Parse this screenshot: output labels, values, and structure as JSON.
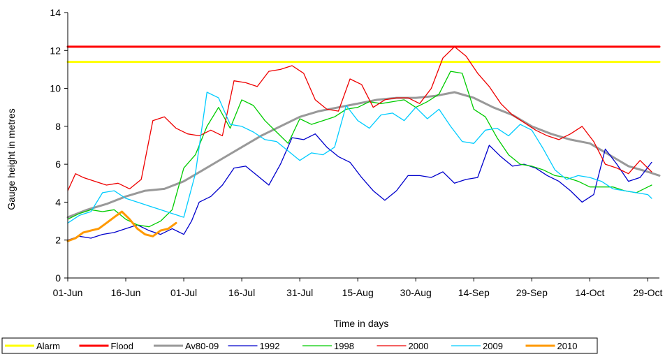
{
  "chart_data": {
    "type": "line",
    "title": "",
    "xlabel": "Time in days",
    "ylabel": "Gauge height in metres",
    "ylim": [
      0,
      14
    ],
    "yticks": [
      "0",
      "2",
      "4",
      "6",
      "8",
      "10",
      "12",
      "14"
    ],
    "xlim": [
      0,
      153
    ],
    "xticks": [
      {
        "label": "01-Jun",
        "x": 0
      },
      {
        "label": "16-Jun",
        "x": 15
      },
      {
        "label": "01-Jul",
        "x": 30
      },
      {
        "label": "16-Jul",
        "x": 45
      },
      {
        "label": "31-Jul",
        "x": 60
      },
      {
        "label": "15-Aug",
        "x": 75
      },
      {
        "label": "30-Aug",
        "x": 90
      },
      {
        "label": "14-Sep",
        "x": 105
      },
      {
        "label": "29-Sep",
        "x": 120
      },
      {
        "label": "14-Oct",
        "x": 135
      },
      {
        "label": "29-Oct",
        "x": 150
      }
    ],
    "grid": false,
    "legend_position": "bottom",
    "series": [
      {
        "name": "Alarm",
        "color": "#ffff00",
        "width": 3,
        "x": [
          0,
          153
        ],
        "y": [
          11.4,
          11.4
        ]
      },
      {
        "name": "Flood",
        "color": "#ff0000",
        "width": 3,
        "x": [
          0,
          153
        ],
        "y": [
          12.2,
          12.2
        ]
      },
      {
        "name": "Av80-09",
        "color": "#999999",
        "width": 3,
        "x": [
          0,
          5,
          10,
          15,
          20,
          25,
          30,
          35,
          40,
          45,
          50,
          55,
          60,
          65,
          70,
          75,
          80,
          85,
          90,
          95,
          100,
          105,
          110,
          115,
          120,
          125,
          130,
          135,
          140,
          145,
          150,
          153
        ],
        "y": [
          3.2,
          3.6,
          3.9,
          4.3,
          4.6,
          4.7,
          5.1,
          5.7,
          6.3,
          6.9,
          7.5,
          8.0,
          8.5,
          8.8,
          9.0,
          9.2,
          9.4,
          9.5,
          9.5,
          9.6,
          9.8,
          9.5,
          9.0,
          8.6,
          8.0,
          7.6,
          7.3,
          7.1,
          6.5,
          5.9,
          5.6,
          5.4
        ]
      },
      {
        "name": "1992",
        "color": "#0000cc",
        "width": 1.3,
        "x": [
          0,
          3,
          6,
          9,
          12,
          15,
          18,
          21,
          24,
          27,
          30,
          32,
          34,
          37,
          40,
          43,
          46,
          49,
          52,
          55,
          58,
          61,
          64,
          67,
          70,
          73,
          76,
          79,
          82,
          85,
          88,
          91,
          94,
          97,
          100,
          103,
          106,
          109,
          112,
          115,
          118,
          121,
          124,
          127,
          130,
          133,
          136,
          139,
          142,
          145,
          148,
          151
        ],
        "y": [
          2.0,
          2.2,
          2.1,
          2.3,
          2.4,
          2.6,
          2.8,
          2.5,
          2.3,
          2.6,
          2.3,
          3.0,
          4.0,
          4.3,
          4.9,
          5.8,
          5.9,
          5.4,
          4.9,
          6.0,
          7.4,
          7.3,
          7.6,
          6.9,
          6.4,
          6.1,
          5.3,
          4.6,
          4.1,
          4.6,
          5.4,
          5.4,
          5.3,
          5.6,
          5.0,
          5.2,
          5.3,
          7.0,
          6.4,
          5.9,
          6.0,
          5.8,
          5.4,
          5.1,
          4.6,
          4.0,
          4.4,
          6.8,
          6.0,
          5.1,
          5.3,
          6.1
        ]
      },
      {
        "name": "1998",
        "color": "#00cc00",
        "width": 1.3,
        "x": [
          0,
          3,
          6,
          9,
          12,
          15,
          18,
          21,
          24,
          27,
          30,
          33,
          36,
          39,
          42,
          45,
          48,
          51,
          54,
          57,
          60,
          63,
          66,
          69,
          72,
          75,
          78,
          81,
          84,
          87,
          90,
          93,
          96,
          99,
          102,
          105,
          108,
          111,
          114,
          117,
          120,
          123,
          126,
          129,
          132,
          135,
          138,
          141,
          144,
          147,
          150,
          151
        ],
        "y": [
          3.1,
          3.4,
          3.6,
          3.5,
          3.6,
          3.1,
          2.8,
          2.7,
          3.0,
          3.6,
          5.8,
          6.5,
          8.0,
          9.0,
          7.9,
          9.4,
          9.1,
          8.3,
          7.7,
          7.1,
          8.4,
          8.1,
          8.3,
          8.5,
          8.9,
          9.0,
          9.3,
          9.2,
          9.3,
          9.4,
          9.0,
          9.3,
          9.7,
          10.9,
          10.8,
          8.9,
          8.5,
          7.4,
          6.5,
          6.0,
          5.9,
          5.7,
          5.4,
          5.3,
          5.1,
          4.8,
          4.8,
          4.8,
          4.6,
          4.5,
          4.8,
          4.9
        ]
      },
      {
        "name": "2000",
        "color": "#ee0000",
        "width": 1.3,
        "x": [
          0,
          2,
          4,
          7,
          10,
          13,
          16,
          19,
          22,
          25,
          28,
          31,
          34,
          37,
          40,
          43,
          46,
          49,
          52,
          55,
          58,
          61,
          64,
          67,
          70,
          73,
          76,
          79,
          82,
          85,
          88,
          91,
          94,
          97,
          100,
          103,
          106,
          109,
          112,
          115,
          118,
          121,
          124,
          127,
          130,
          133,
          136,
          139,
          142,
          145,
          148,
          151
        ],
        "y": [
          4.6,
          5.5,
          5.3,
          5.1,
          4.9,
          5.0,
          4.7,
          5.2,
          8.3,
          8.5,
          7.9,
          7.6,
          7.5,
          7.8,
          7.5,
          10.4,
          10.3,
          10.1,
          10.9,
          11.0,
          11.2,
          10.8,
          9.4,
          8.9,
          8.8,
          10.5,
          10.2,
          9.0,
          9.4,
          9.5,
          9.5,
          9.2,
          10.0,
          11.6,
          12.2,
          11.7,
          10.8,
          10.1,
          9.2,
          8.6,
          8.2,
          7.8,
          7.5,
          7.3,
          7.6,
          8.0,
          7.2,
          6.0,
          5.8,
          5.5,
          6.2,
          5.6
        ]
      },
      {
        "name": "2009",
        "color": "#00ccff",
        "width": 1.3,
        "x": [
          0,
          3,
          6,
          9,
          12,
          15,
          18,
          21,
          24,
          27,
          30,
          33,
          36,
          39,
          42,
          45,
          48,
          51,
          54,
          57,
          60,
          63,
          66,
          69,
          72,
          75,
          78,
          81,
          84,
          87,
          90,
          93,
          96,
          99,
          102,
          105,
          108,
          111,
          114,
          117,
          120,
          123,
          126,
          129,
          132,
          135,
          138,
          141,
          144,
          147,
          150,
          151
        ],
        "y": [
          2.9,
          3.3,
          3.5,
          4.5,
          4.6,
          4.2,
          4.0,
          3.8,
          3.6,
          3.4,
          3.2,
          5.5,
          9.8,
          9.5,
          8.1,
          8.0,
          7.7,
          7.3,
          7.2,
          6.7,
          6.2,
          6.6,
          6.5,
          6.9,
          9.1,
          8.3,
          7.9,
          8.6,
          8.7,
          8.3,
          9.0,
          8.4,
          8.9,
          8.0,
          7.2,
          7.1,
          7.8,
          7.9,
          7.5,
          8.1,
          7.8,
          6.8,
          5.7,
          5.2,
          5.4,
          5.3,
          5.1,
          4.7,
          4.6,
          4.5,
          4.4,
          4.2
        ]
      },
      {
        "name": "2010",
        "color": "#ff9900",
        "width": 3,
        "x": [
          0,
          2,
          4,
          6,
          8,
          10,
          12,
          14,
          16,
          18,
          20,
          22,
          24,
          26,
          28
        ],
        "y": [
          1.95,
          2.1,
          2.4,
          2.5,
          2.6,
          2.9,
          3.2,
          3.5,
          3.1,
          2.6,
          2.3,
          2.2,
          2.5,
          2.6,
          2.9
        ]
      }
    ]
  }
}
